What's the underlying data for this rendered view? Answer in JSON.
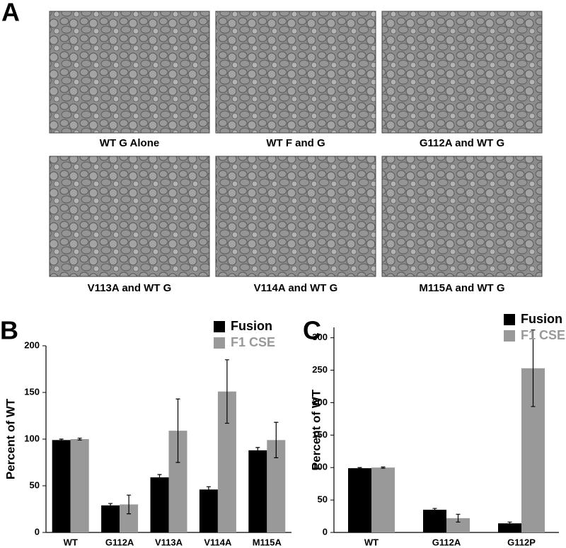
{
  "panel_a": {
    "label": "A",
    "captions": [
      "WT G Alone",
      "WT F and G",
      "G112A and WT G",
      "V113A and WT G",
      "V114A and WT G",
      "M115A and WT G"
    ]
  },
  "chart_data": [
    {
      "type": "bar",
      "panel_label": "B",
      "y_label": "Percent of WT",
      "categories": [
        "WT",
        "G112A",
        "V113A",
        "V114A",
        "M115A"
      ],
      "series": [
        {
          "name": "Fusion",
          "color": "#000000",
          "values": [
            99,
            29,
            59,
            46,
            88
          ],
          "errors": [
            1,
            2,
            3,
            3,
            3
          ]
        },
        {
          "name": "F1 CSE",
          "color": "#999999",
          "values": [
            100,
            30,
            109,
            151,
            99
          ],
          "errors": [
            1,
            10,
            34,
            34,
            19
          ]
        }
      ],
      "ylim": [
        0,
        200
      ],
      "yticks": [
        0,
        50,
        100,
        150,
        200
      ]
    },
    {
      "type": "bar",
      "panel_label": "C",
      "y_label": "Percent of WT",
      "categories": [
        "WT",
        "G112A",
        "G112P"
      ],
      "series": [
        {
          "name": "Fusion",
          "color": "#000000",
          "values": [
            99,
            35,
            14
          ],
          "errors": [
            1,
            2,
            2
          ]
        },
        {
          "name": "F1 CSE",
          "color": "#999999",
          "values": [
            100,
            22,
            253
          ],
          "errors": [
            1,
            6,
            59
          ]
        }
      ],
      "ylim": [
        0,
        316
      ],
      "yticks": [
        0,
        50,
        100,
        150,
        200,
        250,
        300
      ]
    }
  ]
}
